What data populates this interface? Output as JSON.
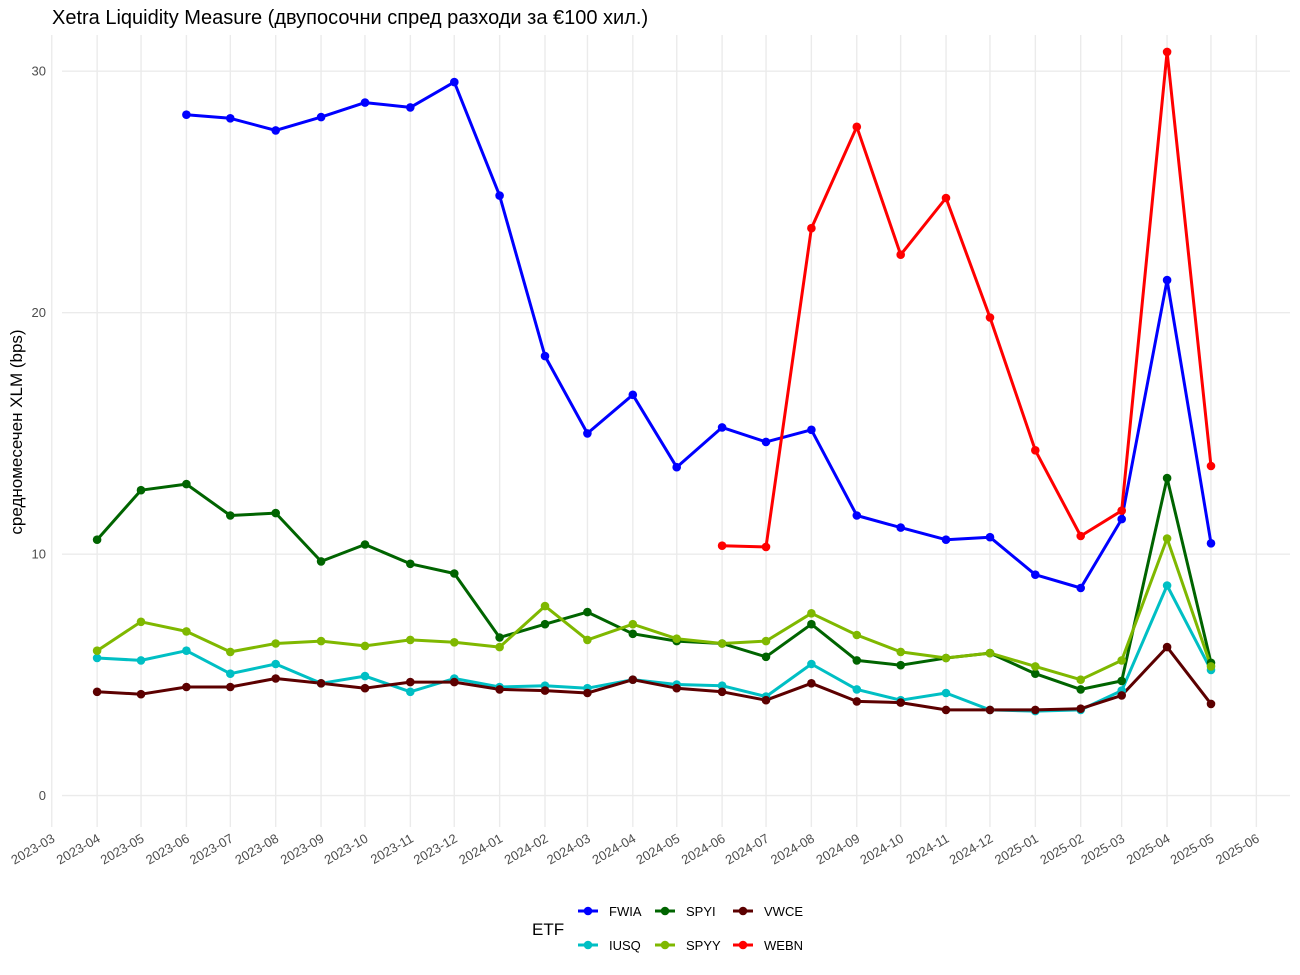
{
  "chart_data": {
    "type": "line",
    "title": "Xetra Liquidity Measure (двупосочни спред разходи за €100 хил.)",
    "xlabel": "",
    "ylabel": "средномесечен XLM (bps)",
    "x_ticks": [
      "2023-03",
      "2023-04",
      "2023-05",
      "2023-06",
      "2023-07",
      "2023-08",
      "2023-09",
      "2023-10",
      "2023-11",
      "2023-12",
      "2024-01",
      "2024-02",
      "2024-03",
      "2024-04",
      "2024-05",
      "2024-06",
      "2024-07",
      "2024-08",
      "2024-09",
      "2024-10",
      "2024-11",
      "2024-12",
      "2025-01",
      "2025-02",
      "2025-03",
      "2025-04",
      "2025-05",
      "2025-06"
    ],
    "y_ticks": [
      0,
      10,
      20,
      30
    ],
    "ylim": [
      -1.3,
      31.5
    ],
    "xlim": [
      "2023-03-08",
      "2025-06-24"
    ],
    "grid": true,
    "legend": {
      "title": "ETF",
      "position": "bottom"
    },
    "series": [
      {
        "name": "FWIA",
        "color": "#0000FF",
        "x": [
          "2023-06-01",
          "2023-07-01",
          "2023-08-01",
          "2023-09-01",
          "2023-10-01",
          "2023-11-01",
          "2023-12-01",
          "2024-01-01",
          "2024-02-01",
          "2024-03-01",
          "2024-04-01",
          "2024-05-01",
          "2024-06-01",
          "2024-07-01",
          "2024-08-01",
          "2024-09-01",
          "2024-10-01",
          "2024-11-01",
          "2024-12-01",
          "2025-01-01",
          "2025-02-01",
          "2025-03-01",
          "2025-04-01",
          "2025-05-01"
        ],
        "values": [
          28.2,
          28.05,
          27.55,
          28.1,
          28.7,
          28.5,
          29.55,
          24.85,
          18.2,
          15.0,
          16.6,
          13.6,
          15.25,
          14.65,
          15.15,
          11.6,
          11.1,
          10.6,
          10.7,
          9.15,
          8.6,
          11.45,
          21.35,
          10.45
        ]
      },
      {
        "name": "IUSQ",
        "color": "#00BFC4",
        "x": [
          "2023-04-01",
          "2023-05-01",
          "2023-06-01",
          "2023-07-01",
          "2023-08-01",
          "2023-09-01",
          "2023-10-01",
          "2023-11-01",
          "2023-12-01",
          "2024-01-01",
          "2024-02-01",
          "2024-03-01",
          "2024-04-01",
          "2024-05-01",
          "2024-06-01",
          "2024-07-01",
          "2024-08-01",
          "2024-09-01",
          "2024-10-01",
          "2024-11-01",
          "2024-12-01",
          "2025-01-01",
          "2025-02-01",
          "2025-03-01",
          "2025-04-01",
          "2025-05-01"
        ],
        "values": [
          5.7,
          5.6,
          6.0,
          5.05,
          5.45,
          4.65,
          4.95,
          4.3,
          4.85,
          4.5,
          4.55,
          4.45,
          4.8,
          4.6,
          4.55,
          4.1,
          5.45,
          4.4,
          3.95,
          4.25,
          3.55,
          3.5,
          3.55,
          4.35,
          8.7,
          5.2
        ]
      },
      {
        "name": "SPYI",
        "color": "#006400",
        "x": [
          "2023-04-01",
          "2023-05-01",
          "2023-06-01",
          "2023-07-01",
          "2023-08-01",
          "2023-09-01",
          "2023-10-01",
          "2023-11-01",
          "2023-12-01",
          "2024-01-01",
          "2024-02-01",
          "2024-03-01",
          "2024-04-01",
          "2024-05-01",
          "2024-06-01",
          "2024-07-01",
          "2024-08-01",
          "2024-09-01",
          "2024-10-01",
          "2024-11-01",
          "2024-12-01",
          "2025-01-01",
          "2025-02-01",
          "2025-03-01",
          "2025-04-01",
          "2025-05-01"
        ],
        "values": [
          10.6,
          12.65,
          12.9,
          11.6,
          11.7,
          9.7,
          10.4,
          9.6,
          9.2,
          6.55,
          7.1,
          7.6,
          6.7,
          6.4,
          6.3,
          5.75,
          7.1,
          5.6,
          5.4,
          5.7,
          5.9,
          5.05,
          4.4,
          4.75,
          13.15,
          5.5
        ]
      },
      {
        "name": "SPYY",
        "color": "#7FB800",
        "x": [
          "2023-04-01",
          "2023-05-01",
          "2023-06-01",
          "2023-07-01",
          "2023-08-01",
          "2023-09-01",
          "2023-10-01",
          "2023-11-01",
          "2023-12-01",
          "2024-01-01",
          "2024-02-01",
          "2024-03-01",
          "2024-04-01",
          "2024-05-01",
          "2024-06-01",
          "2024-07-01",
          "2024-08-01",
          "2024-09-01",
          "2024-10-01",
          "2024-11-01",
          "2024-12-01",
          "2025-01-01",
          "2025-02-01",
          "2025-03-01",
          "2025-04-01",
          "2025-05-01"
        ],
        "values": [
          6.0,
          7.2,
          6.8,
          5.95,
          6.3,
          6.4,
          6.2,
          6.45,
          6.35,
          6.15,
          7.85,
          6.45,
          7.1,
          6.5,
          6.3,
          6.4,
          7.55,
          6.65,
          5.95,
          5.7,
          5.9,
          5.35,
          4.8,
          5.6,
          10.65,
          5.35
        ]
      },
      {
        "name": "VWCE",
        "color": "#5C0000",
        "x": [
          "2023-04-01",
          "2023-05-01",
          "2023-06-01",
          "2023-07-01",
          "2023-08-01",
          "2023-09-01",
          "2023-10-01",
          "2023-11-01",
          "2023-12-01",
          "2024-01-01",
          "2024-02-01",
          "2024-03-01",
          "2024-04-01",
          "2024-05-01",
          "2024-06-01",
          "2024-07-01",
          "2024-08-01",
          "2024-09-01",
          "2024-10-01",
          "2024-11-01",
          "2024-12-01",
          "2025-01-01",
          "2025-02-01",
          "2025-03-01",
          "2025-04-01",
          "2025-05-01"
        ],
        "values": [
          4.3,
          4.2,
          4.5,
          4.5,
          4.85,
          4.65,
          4.45,
          4.7,
          4.7,
          4.4,
          4.35,
          4.25,
          4.8,
          4.45,
          4.3,
          3.95,
          4.65,
          3.9,
          3.85,
          3.55,
          3.55,
          3.55,
          3.6,
          4.15,
          6.15,
          3.8
        ]
      },
      {
        "name": "WEBN",
        "color": "#FF0000",
        "x": [
          "2024-06-01",
          "2024-07-01",
          "2024-08-01",
          "2024-09-01",
          "2024-10-01",
          "2024-11-01",
          "2024-12-01",
          "2025-01-01",
          "2025-02-01",
          "2025-03-01",
          "2025-04-01",
          "2025-05-01"
        ],
        "values": [
          10.35,
          10.3,
          23.5,
          27.7,
          22.4,
          24.75,
          19.8,
          14.3,
          10.75,
          11.8,
          30.8,
          13.65
        ]
      }
    ]
  }
}
